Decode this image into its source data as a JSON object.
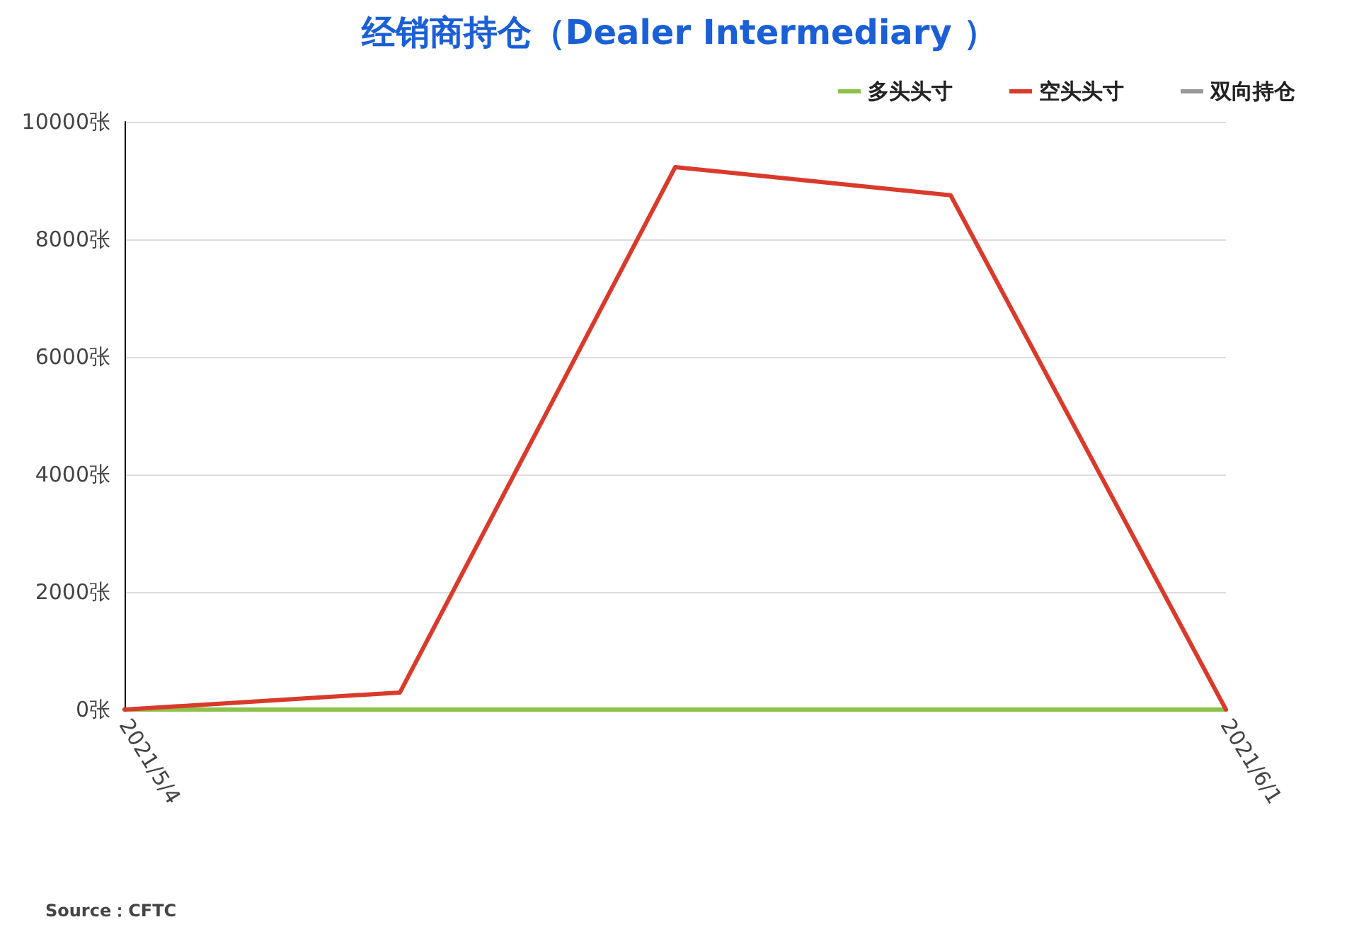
{
  "chart_data": {
    "type": "line",
    "title": "经销商持仓（Dealer Intermediary ）",
    "categories": [
      "2021/5/4",
      null,
      null,
      null,
      "2021/6/1"
    ],
    "series": [
      {
        "name": "多头头寸",
        "color": "#8bc34a",
        "values": [
          0,
          0,
          0,
          0,
          0
        ]
      },
      {
        "name": "空头头寸",
        "color": "#d93a2b",
        "values": [
          0,
          290,
          9230,
          8750,
          0
        ]
      },
      {
        "name": "双向持仓",
        "color": "#999999",
        "values": [
          null,
          null,
          null,
          null,
          null
        ]
      }
    ],
    "ylim": [
      0,
      10000
    ],
    "yticks": [
      {
        "value": 0,
        "label": "0张"
      },
      {
        "value": 2000,
        "label": "2000张"
      },
      {
        "value": 4000,
        "label": "4000张"
      },
      {
        "value": 6000,
        "label": "6000张"
      },
      {
        "value": 8000,
        "label": "8000张"
      },
      {
        "value": 10000,
        "label": "10000张"
      }
    ],
    "grid": "y",
    "legend": "top right",
    "marker": "none",
    "line_style": "solid",
    "annotations": [
      "Source：CFTC"
    ]
  }
}
